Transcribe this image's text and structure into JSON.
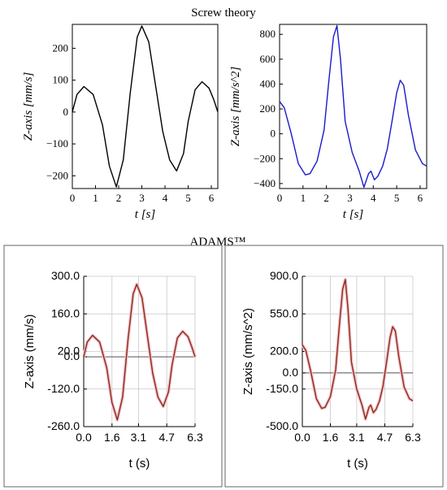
{
  "sections": {
    "top_title": "Screw theory",
    "bottom_title": "ADAMS™"
  },
  "chart_data": [
    {
      "id": "screw-velocity",
      "type": "line",
      "xlabel": "t [s]",
      "ylabel": "Z-axis [mm/s]",
      "xlim": [
        0,
        6.28
      ],
      "ylim": [
        -240,
        275
      ],
      "xticks": [
        0,
        1,
        2,
        3,
        4,
        5,
        6
      ],
      "yticks": [
        -200,
        -100,
        0,
        100,
        200
      ],
      "xtick_labels": [
        "0",
        "1",
        "2",
        "3",
        "4",
        "5",
        "6"
      ],
      "ytick_labels": [
        "−200",
        "−100",
        "0",
        "100",
        "200"
      ],
      "grid": false,
      "color": "#000000",
      "series": [
        {
          "x": [
            0,
            0.2,
            0.5,
            0.9,
            1.3,
            1.6,
            1.9,
            2.2,
            2.5,
            2.8,
            3.0,
            3.3,
            3.6,
            3.9,
            4.2,
            4.5,
            4.8,
            5.0,
            5.3,
            5.6,
            5.9,
            6.1,
            6.28
          ],
          "y": [
            0,
            55,
            80,
            55,
            -40,
            -170,
            -235,
            -150,
            60,
            235,
            270,
            220,
            80,
            -60,
            -150,
            -185,
            -130,
            -30,
            70,
            95,
            75,
            40,
            0
          ]
        }
      ]
    },
    {
      "id": "screw-acceleration",
      "type": "line",
      "xlabel": "t [s]",
      "ylabel": "Z-axis [mm/s^2]",
      "xlim": [
        0,
        6.28
      ],
      "ylim": [
        -440,
        880
      ],
      "xticks": [
        0,
        1,
        2,
        3,
        4,
        5,
        6
      ],
      "yticks": [
        -400,
        -200,
        0,
        200,
        400,
        600,
        800
      ],
      "xtick_labels": [
        "0",
        "1",
        "2",
        "3",
        "4",
        "5",
        "6"
      ],
      "ytick_labels": [
        "−400",
        "−200",
        "0",
        "200",
        "400",
        "600",
        "800"
      ],
      "grid": false,
      "color": "#1a1acc",
      "series": [
        {
          "x": [
            0,
            0.2,
            0.5,
            0.8,
            1.1,
            1.3,
            1.6,
            1.9,
            2.1,
            2.3,
            2.45,
            2.6,
            2.8,
            3.1,
            3.4,
            3.6,
            3.8,
            3.9,
            4.05,
            4.2,
            4.4,
            4.6,
            4.8,
            5.0,
            5.15,
            5.3,
            5.5,
            5.8,
            6.1,
            6.28
          ],
          "y": [
            260,
            210,
            0,
            -240,
            -330,
            -320,
            -220,
            30,
            420,
            780,
            870,
            600,
            100,
            -150,
            -300,
            -430,
            -320,
            -300,
            -370,
            -340,
            -260,
            -120,
            100,
            330,
            430,
            390,
            150,
            -130,
            -240,
            -260
          ]
        }
      ]
    },
    {
      "id": "adams-velocity",
      "type": "line",
      "xlabel": "t (s)",
      "ylabel": "Z-axis (mm/s)",
      "xlim": [
        0,
        6.3
      ],
      "ylim": [
        -260,
        300
      ],
      "xticks": [
        0,
        1.6,
        3.1,
        4.7,
        6.3
      ],
      "yticks": [
        -260,
        -120,
        0,
        20,
        160,
        300
      ],
      "xtick_labels": [
        "0.0",
        "1.6",
        "3.1",
        "4.7",
        "6.3"
      ],
      "ytick_labels": [
        "-260.0",
        "-120.0",
        "0.0",
        "20.0",
        "160.0",
        "300.0"
      ],
      "grid": true,
      "zero_line": true,
      "color": "#8b2a1a",
      "series": [
        {
          "x": [
            0,
            0.2,
            0.5,
            0.9,
            1.3,
            1.6,
            1.9,
            2.2,
            2.5,
            2.8,
            3.0,
            3.3,
            3.6,
            3.9,
            4.2,
            4.5,
            4.8,
            5.0,
            5.3,
            5.6,
            5.9,
            6.1,
            6.3
          ],
          "y": [
            0,
            55,
            80,
            55,
            -40,
            -170,
            -235,
            -150,
            60,
            235,
            270,
            220,
            80,
            -60,
            -150,
            -185,
            -130,
            -30,
            70,
            95,
            75,
            40,
            0
          ]
        }
      ]
    },
    {
      "id": "adams-acceleration",
      "type": "line",
      "xlabel": "t (s)",
      "ylabel": "Z-axis (mm/s^2)",
      "xlim": [
        0,
        6.3
      ],
      "ylim": [
        -500,
        900
      ],
      "xticks": [
        0,
        1.6,
        3.1,
        4.7,
        6.3
      ],
      "yticks": [
        -500,
        -150,
        0,
        200,
        550,
        900
      ],
      "xtick_labels": [
        "0.0",
        "1.6",
        "3.1",
        "4.7",
        "6.3"
      ],
      "ytick_labels": [
        "-500.0",
        "-150.0",
        "0.0",
        "200.0",
        "550.0",
        "900.0"
      ],
      "grid": true,
      "zero_line": true,
      "color": "#8b2a1a",
      "series": [
        {
          "x": [
            0,
            0.2,
            0.5,
            0.8,
            1.1,
            1.3,
            1.6,
            1.9,
            2.1,
            2.3,
            2.45,
            2.6,
            2.8,
            3.1,
            3.4,
            3.6,
            3.8,
            3.9,
            4.05,
            4.2,
            4.4,
            4.6,
            4.8,
            5.0,
            5.15,
            5.3,
            5.5,
            5.8,
            6.1,
            6.3
          ],
          "y": [
            260,
            210,
            0,
            -240,
            -330,
            -320,
            -220,
            30,
            420,
            780,
            870,
            600,
            100,
            -150,
            -300,
            -430,
            -320,
            -300,
            -370,
            -340,
            -260,
            -120,
            100,
            330,
            430,
            390,
            150,
            -130,
            -240,
            -260
          ]
        }
      ]
    }
  ]
}
